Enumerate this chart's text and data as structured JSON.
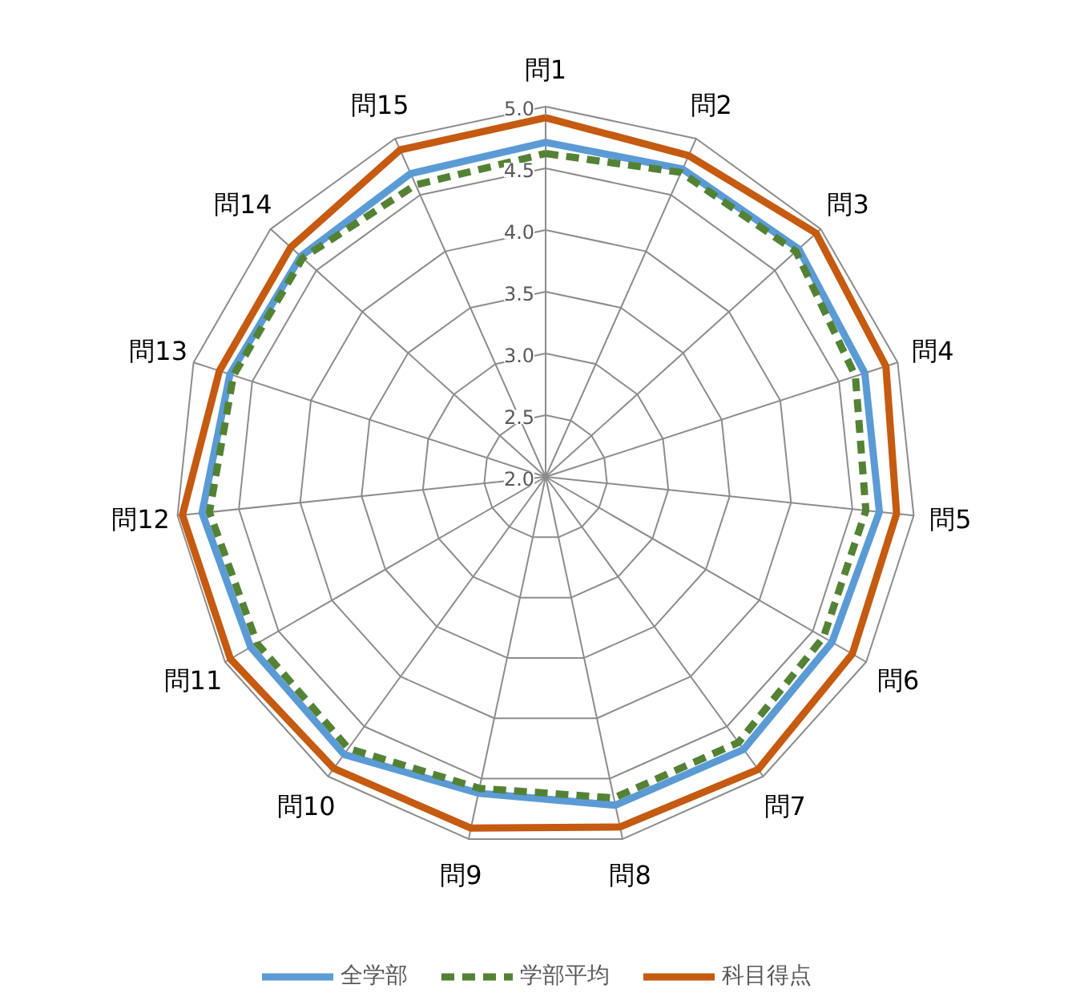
{
  "chart_data": {
    "type": "radar",
    "categories": [
      "問1",
      "問2",
      "問3",
      "問4",
      "問5",
      "問6",
      "問7",
      "問8",
      "問9",
      "問10",
      "問11",
      "問12",
      "問13",
      "問14",
      "問15"
    ],
    "ylim": [
      2.0,
      5.0
    ],
    "yticks": [
      {
        "value": 2.0,
        "label": "2.0"
      },
      {
        "value": 2.5,
        "label": "2.5"
      },
      {
        "value": 3.0,
        "label": "3.0"
      },
      {
        "value": 3.5,
        "label": "3.5"
      },
      {
        "value": 4.0,
        "label": "4.0"
      },
      {
        "value": 4.5,
        "label": "4.5"
      },
      {
        "value": 5.0,
        "label": "5.0"
      }
    ],
    "grid": true,
    "legend": "bottom",
    "marker": "none",
    "series": [
      {
        "name": "全学部",
        "color": "#5b9bd5",
        "line_style": "solid",
        "values": [
          4.71,
          4.73,
          4.76,
          4.72,
          4.72,
          4.68,
          4.73,
          4.72,
          4.62,
          4.78,
          4.76,
          4.8,
          4.69,
          4.67,
          4.69
        ]
      },
      {
        "name": "学部平均",
        "color": "#548235",
        "line_style": "dashed",
        "values": [
          4.62,
          4.7,
          4.73,
          4.64,
          4.61,
          4.6,
          4.66,
          4.66,
          4.58,
          4.72,
          4.7,
          4.74,
          4.66,
          4.65,
          4.59
        ]
      },
      {
        "name": "科目得点",
        "color": "#c55a11",
        "line_style": "solid",
        "values": [
          4.91,
          4.85,
          4.95,
          4.9,
          4.86,
          4.87,
          4.93,
          4.9,
          4.91,
          4.92,
          4.95,
          4.96,
          4.78,
          4.78,
          4.9
        ]
      }
    ]
  }
}
